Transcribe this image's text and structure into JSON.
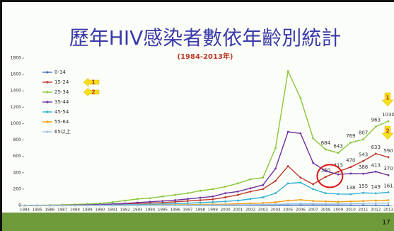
{
  "chart_data": {
    "type": "line",
    "title": "歷年HIV感染者數依年齡別統計",
    "subtitle": "(1984-2013年)",
    "categories": [
      "1984",
      "1985",
      "1986",
      "1987",
      "1988",
      "1989",
      "1990",
      "1991",
      "1992",
      "1993",
      "1994",
      "1995",
      "1996",
      "1997",
      "1998",
      "1999",
      "2000",
      "2001",
      "2002",
      "2003",
      "2004",
      "2005",
      "2006",
      "2007",
      "2008",
      "2009",
      "2010",
      "2011",
      "2012",
      "2013"
    ],
    "series": [
      {
        "name": "0-14",
        "color": "#4472c4",
        "values": [
          0,
          0,
          0,
          0,
          0,
          0,
          1,
          1,
          1,
          1,
          2,
          2,
          2,
          3,
          3,
          3,
          3,
          4,
          4,
          4,
          5,
          5,
          6,
          6,
          5,
          5,
          4,
          4,
          3,
          3
        ]
      },
      {
        "name": "15-24",
        "color": "#c0392b",
        "values": [
          1,
          1,
          2,
          3,
          5,
          8,
          12,
          15,
          20,
          25,
          30,
          35,
          45,
          55,
          65,
          75,
          100,
          130,
          170,
          200,
          300,
          480,
          340,
          260,
          350,
          413,
          470,
          543,
          633,
          590
        ],
        "value_labels": [
          null,
          null,
          null,
          null,
          null,
          null,
          null,
          null,
          null,
          null,
          null,
          null,
          null,
          null,
          null,
          null,
          null,
          null,
          null,
          null,
          null,
          null,
          null,
          null,
          "350",
          "413",
          "470",
          "543",
          "633",
          "590"
        ]
      },
      {
        "name": "25-34",
        "color": "#8cc63f",
        "values": [
          2,
          3,
          5,
          8,
          12,
          18,
          25,
          40,
          60,
          80,
          90,
          110,
          130,
          150,
          180,
          200,
          230,
          270,
          320,
          340,
          700,
          1640,
          1310,
          820,
          684,
          643,
          769,
          807,
          963,
          1030
        ],
        "value_labels": [
          null,
          null,
          null,
          null,
          null,
          null,
          null,
          null,
          null,
          null,
          null,
          null,
          null,
          null,
          null,
          null,
          null,
          null,
          null,
          null,
          null,
          null,
          null,
          null,
          "684",
          "643",
          "769",
          "807",
          "963",
          "1030"
        ]
      },
      {
        "name": "35-44",
        "color": "#7030a0",
        "values": [
          1,
          1,
          2,
          3,
          5,
          8,
          12,
          18,
          25,
          35,
          45,
          55,
          65,
          80,
          95,
          110,
          150,
          170,
          210,
          250,
          450,
          900,
          880,
          520,
          420,
          380,
          390,
          388,
          413,
          370
        ],
        "value_labels": [
          null,
          null,
          null,
          null,
          null,
          null,
          null,
          null,
          null,
          null,
          null,
          null,
          null,
          null,
          null,
          null,
          null,
          null,
          null,
          null,
          null,
          null,
          null,
          null,
          null,
          null,
          null,
          "388",
          "413",
          "370"
        ]
      },
      {
        "name": "45-54",
        "color": "#31b0d5",
        "values": [
          0,
          0,
          1,
          1,
          2,
          3,
          4,
          6,
          8,
          10,
          14,
          18,
          22,
          28,
          35,
          42,
          50,
          60,
          80,
          100,
          150,
          270,
          280,
          200,
          150,
          140,
          138,
          155,
          149,
          161
        ],
        "value_labels": [
          null,
          null,
          null,
          null,
          null,
          null,
          null,
          null,
          null,
          null,
          null,
          null,
          null,
          null,
          null,
          null,
          null,
          null,
          null,
          null,
          null,
          null,
          null,
          null,
          null,
          null,
          "138",
          "155",
          "149",
          "161"
        ]
      },
      {
        "name": "55-64",
        "color": "#f39c12",
        "values": [
          0,
          0,
          0,
          0,
          1,
          1,
          2,
          2,
          3,
          4,
          5,
          6,
          8,
          10,
          12,
          14,
          16,
          20,
          25,
          30,
          40,
          60,
          70,
          55,
          50,
          45,
          50,
          55,
          60,
          65
        ]
      },
      {
        "name": "65以上",
        "color": "#9dc3e6",
        "values": [
          0,
          0,
          0,
          0,
          0,
          0,
          1,
          1,
          1,
          2,
          2,
          3,
          3,
          4,
          5,
          6,
          7,
          8,
          10,
          12,
          15,
          20,
          25,
          22,
          20,
          20,
          22,
          25,
          28,
          30
        ]
      }
    ],
    "ylim": [
      0,
      1800
    ],
    "yticks": [
      0,
      200,
      400,
      600,
      800,
      1000,
      1200,
      1400,
      1600,
      1800
    ],
    "annotations": [
      "1",
      "2",
      "1",
      "2"
    ],
    "page_number": "17"
  }
}
